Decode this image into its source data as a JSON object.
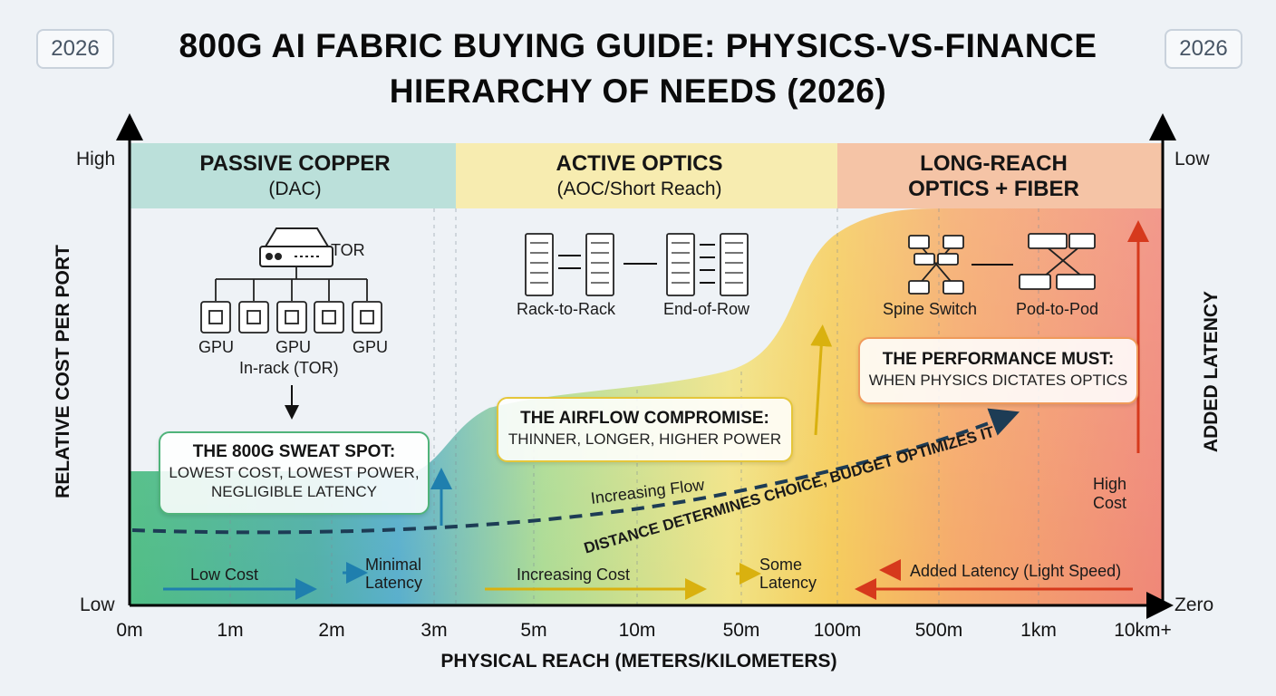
{
  "year_badge_left": "2026",
  "year_badge_right": "2026",
  "title": {
    "line1": "800G AI FABRIC BUYING GUIDE: PHYSICS-VS-FINANCE",
    "line2": "HIERARCHY OF NEEDS (2026)"
  },
  "axes": {
    "left_high": "High",
    "left_low": "Low",
    "left_title": "RELATIVE COST PER PORT",
    "right_high": "Low",
    "right_low": "Zero",
    "right_title": "ADDED LATENCY",
    "x_title": "PHYSICAL REACH (METERS/KILOMETERS)",
    "x_ticks": [
      "0m",
      "1m",
      "2m",
      "3m",
      "5m",
      "10m",
      "50m",
      "100m",
      "500m",
      "1km",
      "10km+"
    ]
  },
  "zones": [
    {
      "title": "PASSIVE COPPER",
      "subtitle": "(DAC)",
      "color": "#bfe3c8"
    },
    {
      "title": "ACTIVE OPTICS",
      "subtitle": "(AOC/Short Reach)",
      "color": "#f7ecb0"
    },
    {
      "title": "LONG-REACH",
      "subtitle": "OPTICS + FIBER",
      "color": "#f5c4a6"
    }
  ],
  "zone1_diagram": {
    "tor_label": "TOR",
    "gpu_labels": [
      "GPU",
      "GPU",
      "GPU"
    ],
    "caption": "In-rack (TOR)"
  },
  "zone2_diagram": {
    "left_label": "Rack-to-Rack",
    "right_label": "End-of-Row"
  },
  "zone3_diagram": {
    "left_label": "Spine Switch",
    "right_label": "Pod-to-Pod"
  },
  "callouts": {
    "sweet_spot": {
      "heading": "THE 800G SWEAT SPOT:",
      "line1": "LOWEST COST, LOWEST POWER,",
      "line2": "NEGLIGIBLE LATENCY"
    },
    "airflow": {
      "heading": "THE AIRFLOW COMPROMISE:",
      "line1": "THINNER, LONGER, HIGHER POWER"
    },
    "performance": {
      "heading": "THE PERFORMANCE MUST:",
      "line1": "WHEN PHYSICS DICTATES OPTICS"
    }
  },
  "curve_labels": {
    "increasing_flow": "Increasing Flow",
    "distance": "DISTANCE DETERMINES CHOICE, BUDGET OPTIMIZES IT"
  },
  "bottom_labels": {
    "low_cost": "Low Cost",
    "minimal_latency_1": "Minimal",
    "minimal_latency_2": "Latency",
    "increasing_cost": "Increasing Cost",
    "some_latency_1": "Some",
    "some_latency_2": "Latency",
    "added_latency": "Added Latency (Light Speed)",
    "high_cost_1": "High",
    "high_cost_2": "Cost"
  },
  "colors": {
    "copper_accent": "#1f7fae",
    "optics_accent": "#d9b10f",
    "longreach_accent": "#d6391c",
    "curve_dash": "#1d3c55"
  }
}
